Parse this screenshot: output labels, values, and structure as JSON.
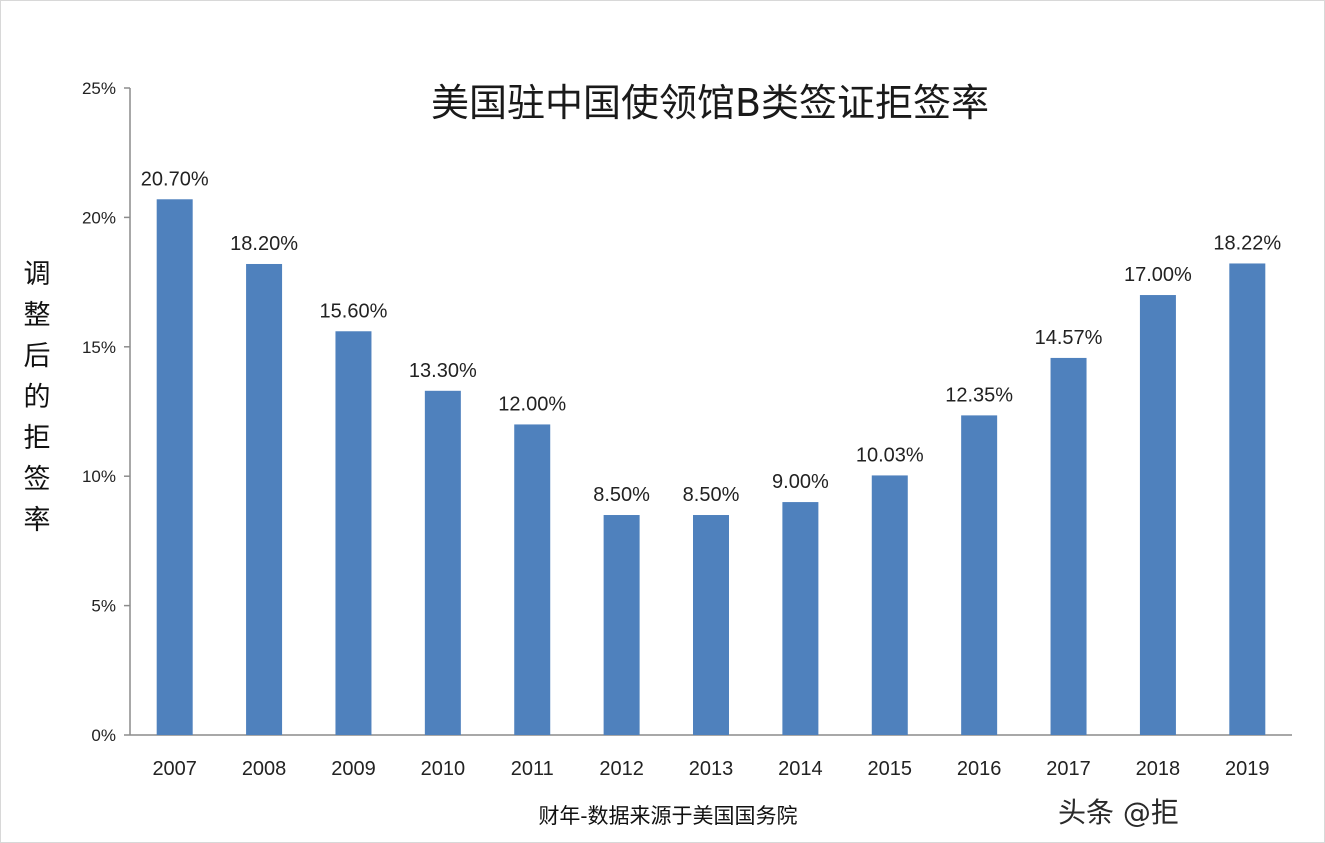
{
  "chart_data": {
    "type": "bar",
    "title": "美国驻中国使领馆B类签证拒签率",
    "xlabel": "财年-数据来源于美国国务院",
    "ylabel": "调整后的拒签率",
    "categories": [
      "2007",
      "2008",
      "2009",
      "2010",
      "2011",
      "2012",
      "2013",
      "2014",
      "2015",
      "2016",
      "2017",
      "2018",
      "2019"
    ],
    "values": [
      20.7,
      18.2,
      15.6,
      13.3,
      12.0,
      8.5,
      8.5,
      9.0,
      10.03,
      12.35,
      14.57,
      17.0,
      18.22
    ],
    "data_labels": [
      "20.70%",
      "18.20%",
      "15.60%",
      "13.30%",
      "12.00%",
      "8.50%",
      "8.50%",
      "9.00%",
      "10.03%",
      "12.35%",
      "14.57%",
      "17.00%",
      "18.22%"
    ],
    "yticks": [
      0,
      5,
      10,
      15,
      20,
      25
    ],
    "ytick_labels": [
      "0%",
      "5%",
      "10%",
      "15%",
      "20%",
      "25%"
    ],
    "ylim": [
      0,
      25
    ],
    "grid": false,
    "legend": "none",
    "bar_color": "#4f81bd"
  },
  "watermark": {
    "text": "头条 @拒"
  }
}
